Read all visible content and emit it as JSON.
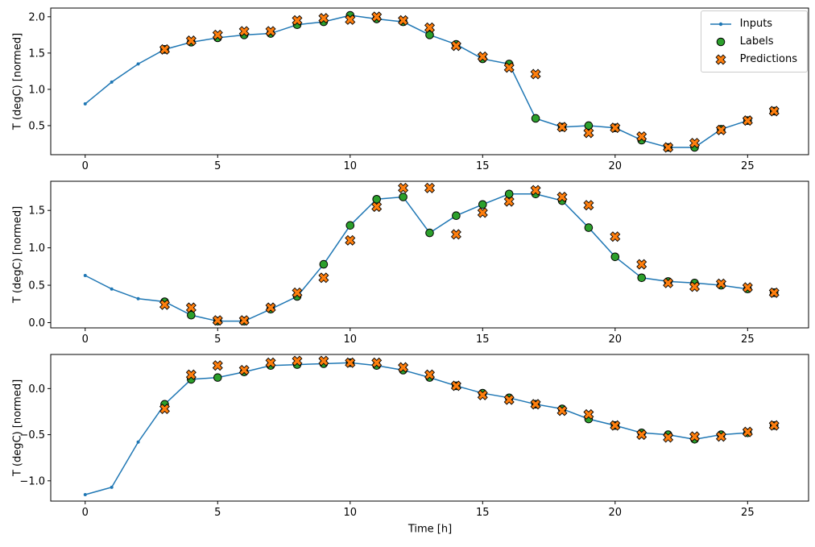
{
  "figure": {
    "background": "#ffffff",
    "xlabel": "Time [h]",
    "colors": {
      "inputs": "#1f77b4",
      "labels": "#2ca02c",
      "predictions": "#ff7f0e",
      "marker_edge": "#000000",
      "legend_border": "#cccccc"
    },
    "legend": {
      "position": "upper right",
      "items": [
        {
          "label": "Inputs",
          "marker": "line-dot-icon"
        },
        {
          "label": "Labels",
          "marker": "circle-icon"
        },
        {
          "label": "Predictions",
          "marker": "x-marker-icon"
        }
      ]
    }
  },
  "chart_data": [
    {
      "type": "line",
      "title": "",
      "xlabel": "",
      "ylabel": "T (degC) [normed]",
      "grid": false,
      "xlim": [
        -1.3,
        27.3
      ],
      "ylim": [
        0.1,
        2.12
      ],
      "xticks": {
        "values": [
          0,
          5,
          10,
          15,
          20,
          25
        ],
        "labels": [
          "0",
          "5",
          "10",
          "15",
          "20",
          "25"
        ]
      },
      "yticks": {
        "values": [
          0.5,
          1.0,
          1.5,
          2.0
        ],
        "labels": [
          "0.5",
          "1.0",
          "1.5",
          "2.0"
        ]
      },
      "series": [
        {
          "name": "Inputs",
          "marker": "line-dot",
          "x": [
            0,
            1,
            2,
            3,
            4,
            5,
            6,
            7,
            8,
            9,
            10,
            11,
            12,
            13,
            14,
            15,
            16,
            17,
            18,
            19,
            20,
            21,
            22,
            23,
            24,
            25
          ],
          "y": [
            0.8,
            1.1,
            1.35,
            1.55,
            1.65,
            1.71,
            1.75,
            1.77,
            1.89,
            1.93,
            2.02,
            1.97,
            1.93,
            1.75,
            1.62,
            1.42,
            1.35,
            0.6,
            0.48,
            0.5,
            0.47,
            0.3,
            0.2,
            0.2,
            0.45,
            0.57
          ]
        },
        {
          "name": "Labels",
          "marker": "circle",
          "x": [
            3,
            4,
            5,
            6,
            7,
            8,
            9,
            10,
            11,
            12,
            13,
            14,
            15,
            16,
            17,
            18,
            19,
            20,
            21,
            22,
            23,
            24,
            25,
            26
          ],
          "y": [
            1.55,
            1.65,
            1.71,
            1.75,
            1.77,
            1.89,
            1.93,
            2.02,
            1.97,
            1.93,
            1.75,
            1.62,
            1.42,
            1.35,
            0.6,
            0.48,
            0.5,
            0.47,
            0.3,
            0.2,
            0.2,
            0.45,
            0.57,
            0.7
          ]
        },
        {
          "name": "Predictions",
          "marker": "x",
          "x": [
            3,
            4,
            5,
            6,
            7,
            8,
            9,
            10,
            11,
            12,
            13,
            14,
            15,
            16,
            17,
            18,
            19,
            20,
            21,
            22,
            23,
            24,
            25,
            26
          ],
          "y": [
            1.55,
            1.67,
            1.75,
            1.8,
            1.8,
            1.95,
            1.98,
            1.96,
            2.0,
            1.95,
            1.85,
            1.6,
            1.45,
            1.3,
            1.21,
            0.48,
            0.4,
            0.47,
            0.35,
            0.2,
            0.26,
            0.44,
            0.57,
            0.7
          ]
        }
      ]
    },
    {
      "type": "line",
      "title": "",
      "xlabel": "",
      "ylabel": "T (degC) [normed]",
      "grid": false,
      "xlim": [
        -1.3,
        27.3
      ],
      "ylim": [
        -0.07,
        1.89
      ],
      "xticks": {
        "values": [
          0,
          5,
          10,
          15,
          20,
          25
        ],
        "labels": [
          "0",
          "5",
          "10",
          "15",
          "20",
          "25"
        ]
      },
      "yticks": {
        "values": [
          0.0,
          0.5,
          1.0,
          1.5
        ],
        "labels": [
          "0.0",
          "0.5",
          "1.0",
          "1.5"
        ]
      },
      "series": [
        {
          "name": "Inputs",
          "marker": "line-dot",
          "x": [
            0,
            1,
            2,
            3,
            4,
            5,
            6,
            7,
            8,
            9,
            10,
            11,
            12,
            13,
            14,
            15,
            16,
            17,
            18,
            19,
            20,
            21,
            22,
            23,
            24,
            25
          ],
          "y": [
            0.63,
            0.45,
            0.32,
            0.28,
            0.1,
            0.02,
            0.02,
            0.18,
            0.35,
            0.78,
            1.3,
            1.65,
            1.68,
            1.2,
            1.43,
            1.58,
            1.72,
            1.72,
            1.63,
            1.27,
            0.88,
            0.6,
            0.55,
            0.53,
            0.5,
            0.45
          ]
        },
        {
          "name": "Labels",
          "marker": "circle",
          "x": [
            3,
            4,
            5,
            6,
            7,
            8,
            9,
            10,
            11,
            12,
            13,
            14,
            15,
            16,
            17,
            18,
            19,
            20,
            21,
            22,
            23,
            24,
            25,
            26
          ],
          "y": [
            0.28,
            0.1,
            0.02,
            0.02,
            0.18,
            0.35,
            0.78,
            1.3,
            1.65,
            1.68,
            1.2,
            1.43,
            1.58,
            1.72,
            1.72,
            1.63,
            1.27,
            0.88,
            0.6,
            0.55,
            0.53,
            0.5,
            0.45,
            0.4
          ]
        },
        {
          "name": "Predictions",
          "marker": "x",
          "x": [
            3,
            4,
            5,
            6,
            7,
            8,
            9,
            10,
            11,
            12,
            13,
            14,
            15,
            16,
            17,
            18,
            19,
            20,
            21,
            22,
            23,
            24,
            25,
            26
          ],
          "y": [
            0.24,
            0.2,
            0.03,
            0.03,
            0.2,
            0.4,
            0.6,
            1.1,
            1.55,
            1.8,
            1.8,
            1.18,
            1.47,
            1.62,
            1.77,
            1.68,
            1.57,
            1.15,
            0.78,
            0.53,
            0.48,
            0.52,
            0.47,
            0.4
          ]
        }
      ]
    },
    {
      "type": "line",
      "title": "",
      "xlabel": "Time [h]",
      "ylabel": "T (degC) [normed]",
      "grid": false,
      "xlim": [
        -1.3,
        27.3
      ],
      "ylim": [
        -1.22,
        0.37
      ],
      "xticks": {
        "values": [
          0,
          5,
          10,
          15,
          20,
          25
        ],
        "labels": [
          "0",
          "5",
          "10",
          "15",
          "20",
          "25"
        ]
      },
      "yticks": {
        "values": [
          -1.0,
          -0.5,
          0.0
        ],
        "labels": [
          "−1.0",
          "−0.5",
          "0.0"
        ]
      },
      "series": [
        {
          "name": "Inputs",
          "marker": "line-dot",
          "x": [
            0,
            1,
            2,
            3,
            4,
            5,
            6,
            7,
            8,
            9,
            10,
            11,
            12,
            13,
            14,
            15,
            16,
            17,
            18,
            19,
            20,
            21,
            22,
            23,
            24,
            25
          ],
          "y": [
            -1.15,
            -1.07,
            -0.58,
            -0.17,
            0.1,
            0.12,
            0.18,
            0.25,
            0.26,
            0.27,
            0.28,
            0.25,
            0.2,
            0.12,
            0.03,
            -0.05,
            -0.1,
            -0.17,
            -0.22,
            -0.33,
            -0.4,
            -0.48,
            -0.5,
            -0.55,
            -0.5,
            -0.48
          ]
        },
        {
          "name": "Labels",
          "marker": "circle",
          "x": [
            3,
            4,
            5,
            6,
            7,
            8,
            9,
            10,
            11,
            12,
            13,
            14,
            15,
            16,
            17,
            18,
            19,
            20,
            21,
            22,
            23,
            24,
            25,
            26
          ],
          "y": [
            -0.17,
            0.1,
            0.12,
            0.18,
            0.25,
            0.26,
            0.27,
            0.28,
            0.25,
            0.2,
            0.12,
            0.03,
            -0.05,
            -0.1,
            -0.17,
            -0.22,
            -0.33,
            -0.4,
            -0.48,
            -0.5,
            -0.55,
            -0.5,
            -0.48,
            -0.4
          ]
        },
        {
          "name": "Predictions",
          "marker": "x",
          "x": [
            3,
            4,
            5,
            6,
            7,
            8,
            9,
            10,
            11,
            12,
            13,
            14,
            15,
            16,
            17,
            18,
            19,
            20,
            21,
            22,
            23,
            24,
            25,
            26
          ],
          "y": [
            -0.22,
            0.15,
            0.25,
            0.2,
            0.28,
            0.3,
            0.3,
            0.28,
            0.28,
            0.23,
            0.15,
            0.03,
            -0.07,
            -0.12,
            -0.17,
            -0.24,
            -0.28,
            -0.4,
            -0.5,
            -0.53,
            -0.52,
            -0.52,
            -0.47,
            -0.4
          ]
        }
      ]
    }
  ]
}
